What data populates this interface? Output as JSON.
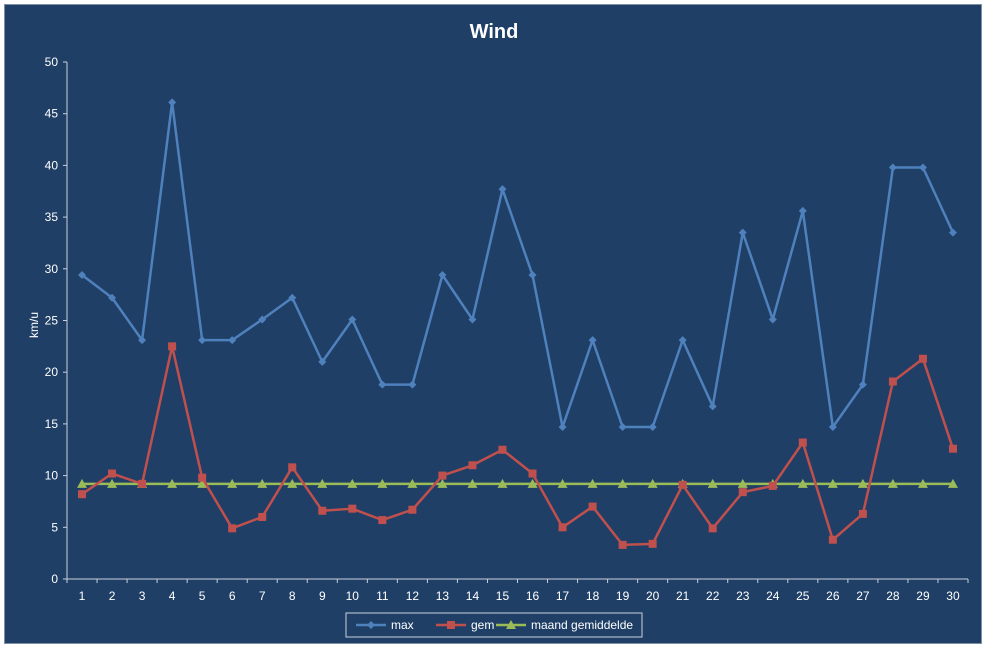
{
  "chart_data": {
    "type": "line",
    "title": "Wind",
    "xlabel": "",
    "ylabel": "km/u",
    "ylim": [
      0,
      50
    ],
    "yticks": [
      0,
      5,
      10,
      15,
      20,
      25,
      30,
      35,
      40,
      45,
      50
    ],
    "categories": [
      "1",
      "2",
      "3",
      "4",
      "5",
      "6",
      "7",
      "8",
      "9",
      "10",
      "11",
      "12",
      "13",
      "14",
      "15",
      "16",
      "17",
      "18",
      "19",
      "20",
      "21",
      "22",
      "23",
      "24",
      "25",
      "26",
      "27",
      "28",
      "29",
      "30"
    ],
    "series": [
      {
        "name": "max",
        "color": "#4f81bd",
        "marker": "diamond",
        "values": [
          29.4,
          27.2,
          23.1,
          46.1,
          23.1,
          23.1,
          25.1,
          27.2,
          21.0,
          25.1,
          18.8,
          18.8,
          29.4,
          25.1,
          37.7,
          29.4,
          14.7,
          23.1,
          14.7,
          14.7,
          23.1,
          16.7,
          33.5,
          25.1,
          35.6,
          14.7,
          18.8,
          39.8,
          39.8,
          33.5
        ]
      },
      {
        "name": "gem",
        "color": "#c0504d",
        "marker": "square",
        "values": [
          8.2,
          10.2,
          9.2,
          22.5,
          9.8,
          4.9,
          6.0,
          10.8,
          6.6,
          6.8,
          5.7,
          6.7,
          10.0,
          11.0,
          12.5,
          10.2,
          5.0,
          7.0,
          3.3,
          3.4,
          9.1,
          4.9,
          8.4,
          9.0,
          13.2,
          3.8,
          6.3,
          19.1,
          21.3,
          12.6
        ]
      },
      {
        "name": "maand gemiddelde",
        "color": "#9bbb59",
        "marker": "triangle",
        "values": [
          9.2,
          9.2,
          9.2,
          9.2,
          9.2,
          9.2,
          9.2,
          9.2,
          9.2,
          9.2,
          9.2,
          9.2,
          9.2,
          9.2,
          9.2,
          9.2,
          9.2,
          9.2,
          9.2,
          9.2,
          9.2,
          9.2,
          9.2,
          9.2,
          9.2,
          9.2,
          9.2,
          9.2,
          9.2,
          9.2
        ]
      }
    ],
    "grid": false,
    "legend_position": "bottom"
  },
  "colors": {
    "background": "#1f3f66",
    "text": "#ffffff",
    "axis": "#c8d0dc"
  }
}
